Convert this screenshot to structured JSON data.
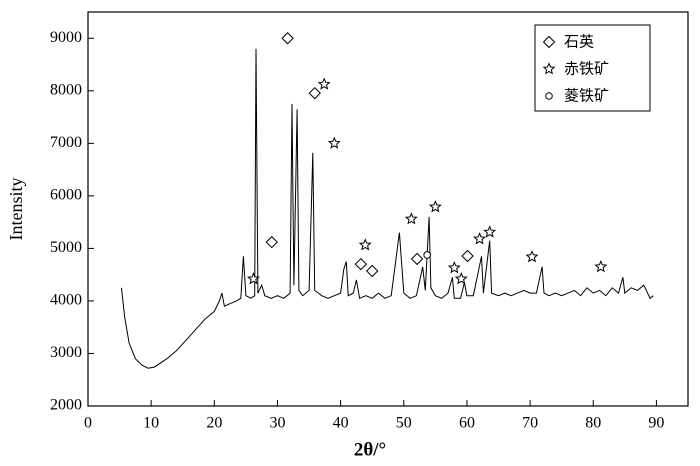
{
  "chart_data": {
    "type": "line",
    "xlabel": "2θ/°",
    "ylabel": "Intensity",
    "xlim": [
      0,
      95
    ],
    "ylim": [
      2000,
      9500
    ],
    "xticks": [
      0,
      10,
      20,
      30,
      40,
      50,
      60,
      70,
      80,
      90
    ],
    "yticks": [
      2000,
      3000,
      4000,
      5000,
      6000,
      7000,
      8000,
      9000
    ],
    "legend": "upper right",
    "line": {
      "color": "#000000",
      "x": [
        5.3,
        5.8,
        6.5,
        7.5,
        8.5,
        9.5,
        10.5,
        11.5,
        12.5,
        14,
        15.5,
        17,
        18.5,
        20,
        20.8,
        21.2,
        21.6,
        22.5,
        23.5,
        24.2,
        24.6,
        25,
        25.8,
        26.4,
        26.6,
        26.9,
        27.5,
        28,
        29,
        30,
        31,
        32,
        32.3,
        32.6,
        33.1,
        33.4,
        34,
        35,
        35.6,
        35.9,
        36.5,
        37,
        38,
        39,
        40,
        40.5,
        40.9,
        41.2,
        42,
        42.5,
        43,
        44,
        45,
        46,
        47,
        48,
        49.3,
        49.6,
        50,
        51,
        52,
        53,
        53.4,
        54,
        54.3,
        55,
        56,
        57,
        57.7,
        58,
        59,
        59.6,
        60,
        61,
        62.3,
        62.6,
        63.6,
        63.9,
        65,
        66,
        67,
        68,
        69,
        70,
        71,
        71.9,
        72.2,
        73,
        74,
        75,
        76,
        77,
        78,
        79,
        80,
        81,
        82,
        83,
        84,
        84.7,
        85,
        86,
        87,
        88,
        89,
        89.5
      ],
      "y": [
        4250,
        3700,
        3200,
        2900,
        2780,
        2720,
        2740,
        2820,
        2900,
        3050,
        3250,
        3450,
        3650,
        3800,
        4000,
        4150,
        3900,
        3950,
        4000,
        4050,
        4850,
        4100,
        4050,
        4100,
        8800,
        4150,
        4300,
        4100,
        4050,
        4100,
        4050,
        4150,
        7750,
        4300,
        7650,
        4200,
        4100,
        4200,
        6820,
        4200,
        4150,
        4100,
        4050,
        4100,
        4150,
        4600,
        4750,
        4100,
        4150,
        4400,
        4050,
        4100,
        4050,
        4150,
        4050,
        4100,
        5300,
        4800,
        4150,
        4050,
        4100,
        4650,
        4200,
        5600,
        4250,
        4100,
        4050,
        4150,
        4450,
        4050,
        4050,
        4350,
        4100,
        4100,
        4850,
        4150,
        5150,
        4150,
        4100,
        4150,
        4100,
        4150,
        4200,
        4150,
        4150,
        4650,
        4150,
        4100,
        4150,
        4100,
        4150,
        4200,
        4100,
        4250,
        4150,
        4200,
        4100,
        4250,
        4150,
        4450,
        4150,
        4250,
        4200,
        4300,
        4050,
        4100
      ]
    },
    "markers": [
      {
        "name": "石英",
        "marker": "diamond",
        "x": [
          31.6,
          29.1,
          35.9,
          43.2,
          45.0,
          52.1,
          60.1
        ],
        "y": [
          9000,
          5120,
          7955,
          4700,
          4570,
          4800,
          4855
        ]
      },
      {
        "name": "赤铁矿",
        "marker": "star",
        "x": [
          26.2,
          37.4,
          39.0,
          43.9,
          51.2,
          55.0,
          58.0,
          59.1,
          62.0,
          63.6,
          70.3,
          81.2
        ],
        "y": [
          4420,
          8125,
          7000,
          5065,
          5560,
          5790,
          4630,
          4420,
          5180,
          5310,
          4840,
          4650
        ]
      },
      {
        "name": "菱铁矿",
        "marker": "circle",
        "x": [
          53.7
        ],
        "y": [
          4875
        ]
      }
    ]
  }
}
